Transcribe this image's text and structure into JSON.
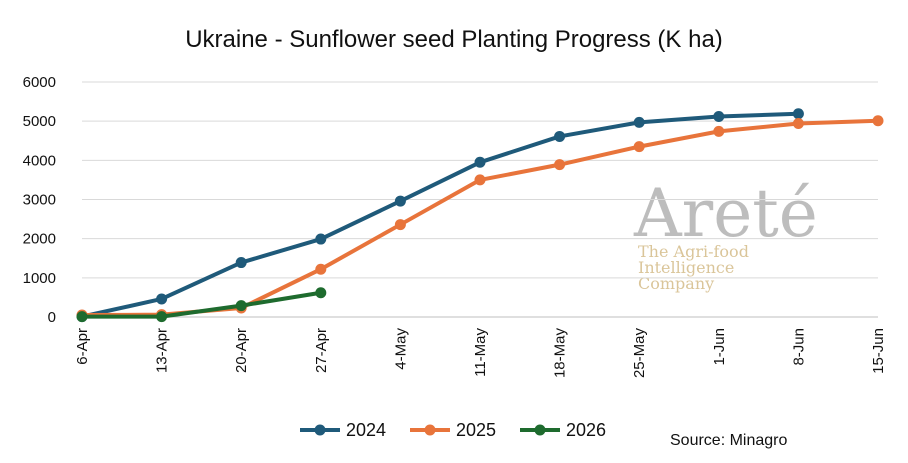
{
  "chart_data": {
    "type": "line",
    "title": "Ukraine - Sunflower seed Planting Progress (K ha)",
    "categories": [
      "6-Apr",
      "13-Apr",
      "20-Apr",
      "27-Apr",
      "4-May",
      "11-May",
      "18-May",
      "25-May",
      "1-Jun",
      "8-Jun",
      "15-Jun"
    ],
    "ylim": [
      0,
      6000
    ],
    "yticks": [
      0,
      1000,
      2000,
      3000,
      4000,
      5000,
      6000
    ],
    "grid": true,
    "legend_position": "bottom",
    "series": [
      {
        "name": "2024",
        "color": "#1f5a7a",
        "values": [
          10,
          460,
          1390,
          1990,
          2960,
          3950,
          4610,
          4970,
          5120,
          5190,
          null
        ]
      },
      {
        "name": "2025",
        "color": "#e8743b",
        "values": [
          50,
          60,
          230,
          1220,
          2360,
          3500,
          3890,
          4350,
          4740,
          4940,
          5010
        ]
      },
      {
        "name": "2026",
        "color": "#1e6b2e",
        "values": [
          10,
          10,
          290,
          620,
          null,
          null,
          null,
          null,
          null,
          null,
          null
        ]
      }
    ]
  },
  "source": "Source: Minagro",
  "watermark": {
    "brand": "Areté",
    "tagline": [
      "The Agri-food",
      "Intelligence",
      "Company"
    ]
  }
}
